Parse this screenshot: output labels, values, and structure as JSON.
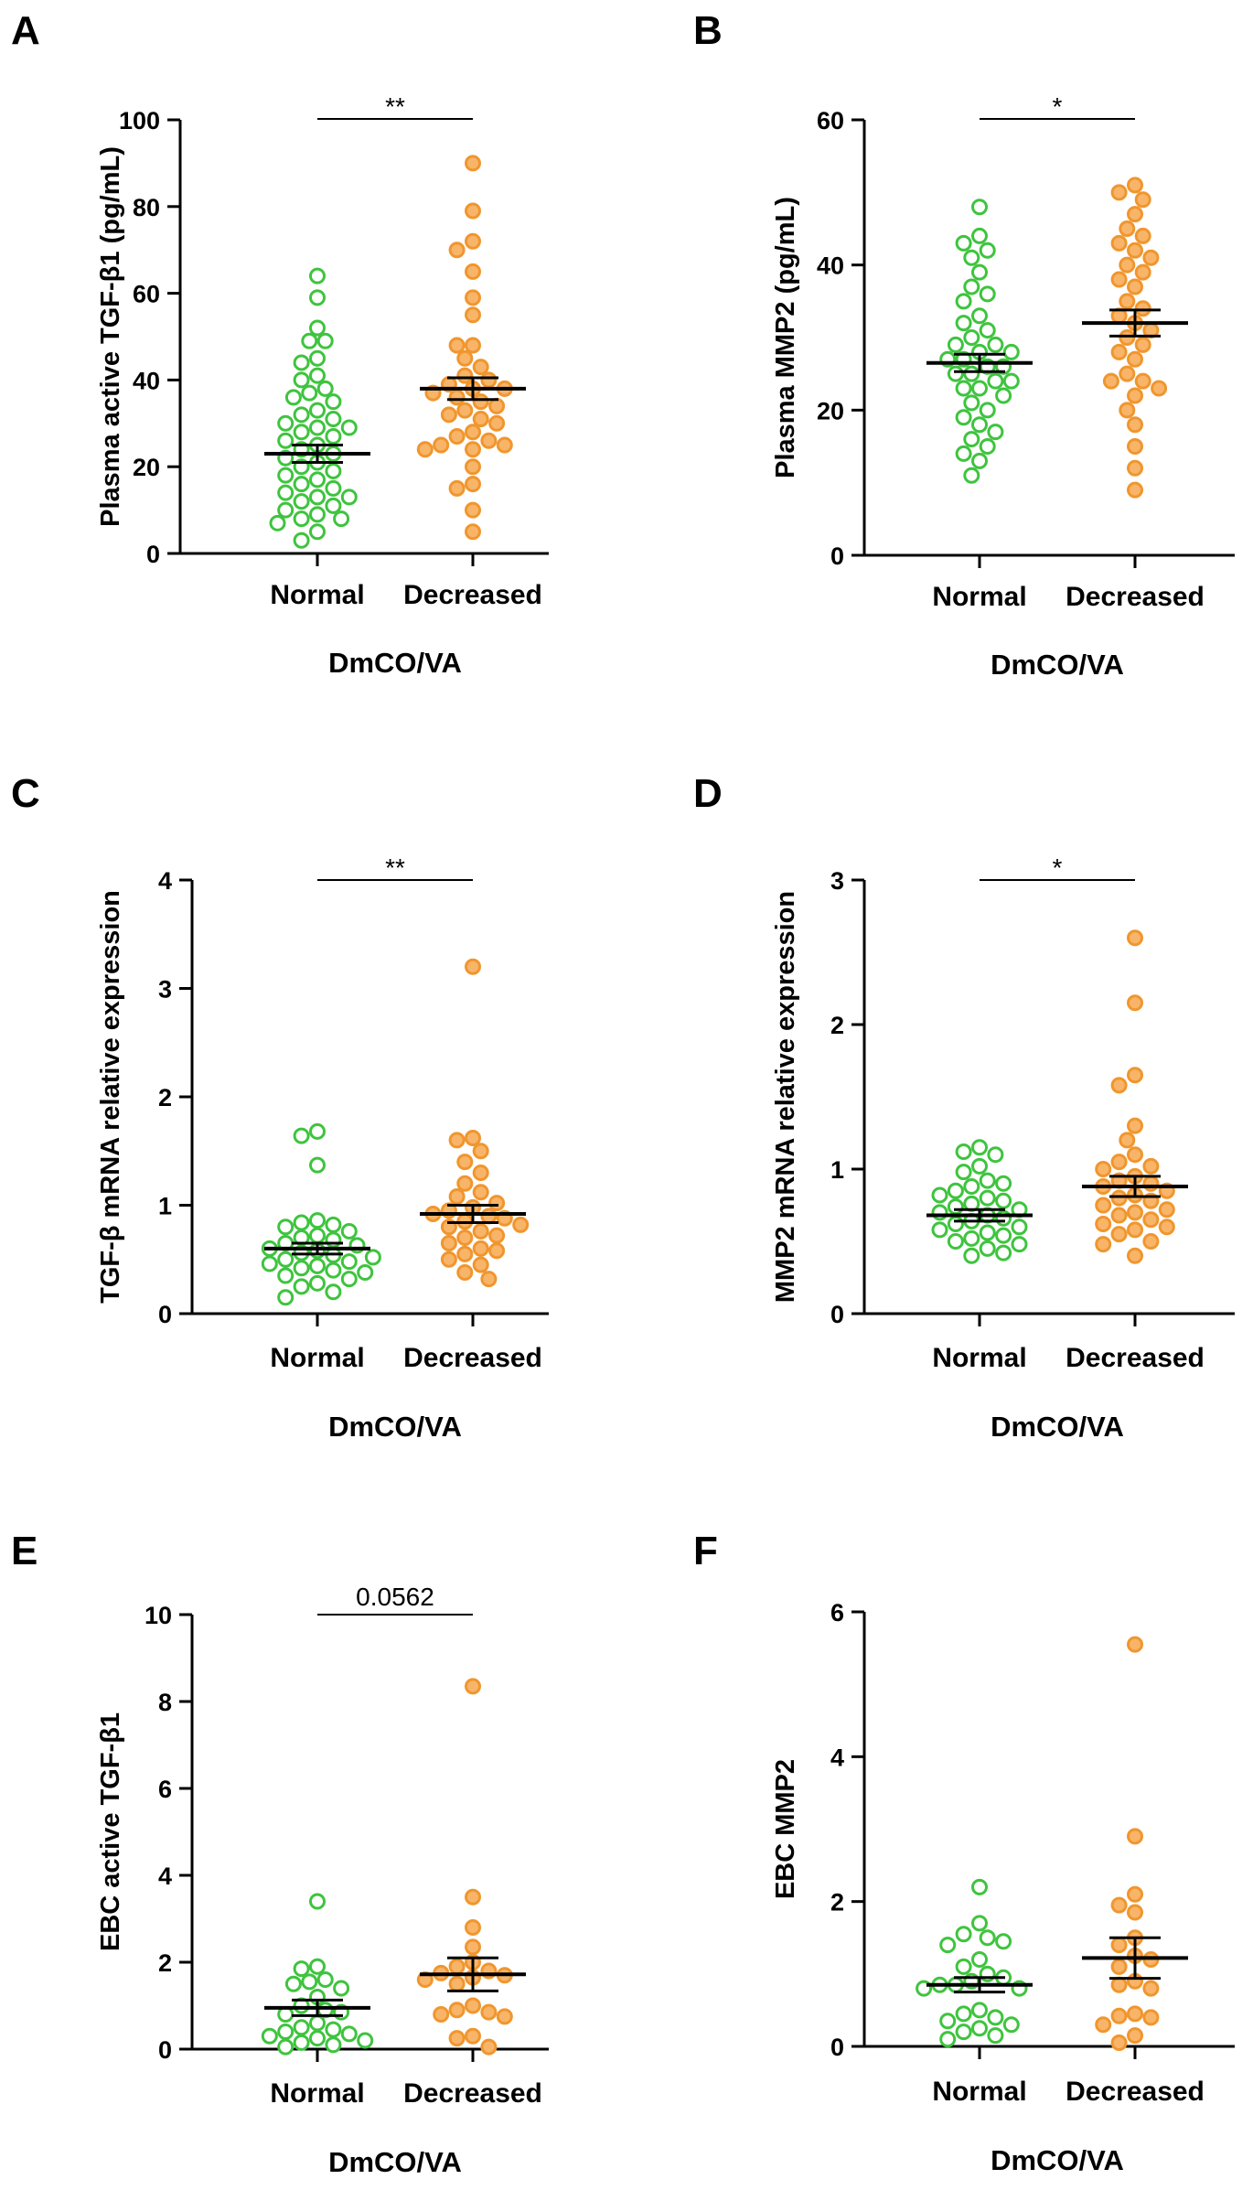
{
  "colors": {
    "normal_edge": "#3ec43e",
    "normal_fill": "#ffffff",
    "decreased_edge": "#f0962e",
    "decreased_fill": "#f8b56a",
    "axis": "#000000"
  },
  "chart_data": [
    {
      "panel": "A",
      "type": "scatter",
      "ylabel": "Plasma active TGF-β1 (pg/mL)",
      "xlabel": "DmCO/VA",
      "categories": [
        "Normal",
        "Decreased"
      ],
      "ylim": [
        0,
        100
      ],
      "yticks": [
        "0",
        "20",
        "40",
        "60",
        "80",
        "100"
      ],
      "significance": "**",
      "series": [
        {
          "name": "Normal",
          "mean": 23,
          "sem": 2,
          "values": [
            64,
            59,
            52,
            49,
            49,
            45,
            44,
            41,
            40,
            38,
            37,
            36,
            35,
            33,
            32,
            31,
            30,
            29,
            29,
            28,
            27,
            26,
            25,
            24,
            23,
            22,
            21,
            20,
            19,
            18,
            17,
            16,
            15,
            14,
            13,
            13,
            12,
            11,
            10,
            9,
            8,
            8,
            7,
            5,
            3
          ]
        },
        {
          "name": "Decreased",
          "mean": 38,
          "sem": 2.5,
          "values": [
            90,
            79,
            72,
            70,
            65,
            59,
            55,
            48,
            48,
            45,
            43,
            41,
            40,
            39,
            38,
            38,
            37,
            36,
            35,
            34,
            33,
            32,
            31,
            30,
            28,
            27,
            26,
            25,
            25,
            24,
            24,
            20,
            16,
            15,
            10,
            5
          ]
        }
      ]
    },
    {
      "panel": "B",
      "type": "scatter",
      "ylabel": "Plasma MMP2 (pg/mL)",
      "xlabel": "DmCO/VA",
      "categories": [
        "Normal",
        "Decreased"
      ],
      "ylim": [
        0,
        60
      ],
      "yticks": [
        "0",
        "20",
        "40",
        "60"
      ],
      "significance": "*",
      "series": [
        {
          "name": "Normal",
          "mean": 26.5,
          "sem": 1.2,
          "values": [
            48,
            44,
            43,
            42,
            41,
            39,
            37,
            36,
            35,
            33,
            32,
            31,
            30,
            29,
            29,
            28,
            28,
            27,
            27,
            26,
            26,
            25,
            25,
            24,
            24,
            23,
            23,
            22,
            21,
            20,
            19,
            18,
            17,
            16,
            15,
            14,
            13,
            11
          ]
        },
        {
          "name": "Decreased",
          "mean": 32,
          "sem": 1.8,
          "values": [
            51,
            50,
            49,
            47,
            45,
            44,
            43,
            42,
            41,
            40,
            39,
            38,
            37,
            35,
            34,
            33,
            32,
            31,
            30,
            29,
            28,
            27,
            25,
            24,
            24,
            23,
            22,
            20,
            18,
            15,
            12,
            9
          ]
        }
      ]
    },
    {
      "panel": "C",
      "type": "scatter",
      "ylabel": "TGF-β mRNA relative expression",
      "xlabel": "DmCO/VA",
      "categories": [
        "Normal",
        "Decreased"
      ],
      "ylim": [
        0,
        4
      ],
      "yticks": [
        "0",
        "1",
        "2",
        "3",
        "4"
      ],
      "significance": "**",
      "series": [
        {
          "name": "Normal",
          "mean": 0.6,
          "sem": 0.05,
          "values": [
            1.68,
            1.64,
            1.37,
            0.86,
            0.84,
            0.82,
            0.8,
            0.76,
            0.72,
            0.7,
            0.68,
            0.65,
            0.63,
            0.6,
            0.58,
            0.56,
            0.54,
            0.52,
            0.5,
            0.48,
            0.46,
            0.44,
            0.42,
            0.4,
            0.38,
            0.35,
            0.32,
            0.28,
            0.25,
            0.2,
            0.15
          ]
        },
        {
          "name": "Decreased",
          "mean": 0.92,
          "sem": 0.08,
          "values": [
            3.2,
            1.62,
            1.6,
            1.5,
            1.4,
            1.3,
            1.2,
            1.12,
            1.08,
            1.02,
            0.98,
            0.95,
            0.92,
            0.9,
            0.88,
            0.85,
            0.82,
            0.8,
            0.76,
            0.72,
            0.7,
            0.65,
            0.6,
            0.58,
            0.55,
            0.5,
            0.45,
            0.38,
            0.32
          ]
        }
      ]
    },
    {
      "panel": "D",
      "type": "scatter",
      "ylabel": "MMP2 mRNA relative expression",
      "xlabel": "DmCO/VA",
      "categories": [
        "Normal",
        "Decreased"
      ],
      "ylim": [
        0,
        3
      ],
      "yticks": [
        "0",
        "1",
        "2",
        "3"
      ],
      "significance": "*",
      "series": [
        {
          "name": "Normal",
          "mean": 0.68,
          "sem": 0.04,
          "values": [
            1.15,
            1.12,
            1.1,
            1.02,
            0.98,
            0.92,
            0.9,
            0.88,
            0.85,
            0.82,
            0.8,
            0.78,
            0.76,
            0.74,
            0.72,
            0.7,
            0.68,
            0.66,
            0.64,
            0.62,
            0.6,
            0.58,
            0.56,
            0.54,
            0.52,
            0.5,
            0.48,
            0.45,
            0.42,
            0.4
          ]
        },
        {
          "name": "Decreased",
          "mean": 0.88,
          "sem": 0.07,
          "values": [
            2.6,
            2.15,
            1.65,
            1.58,
            1.3,
            1.2,
            1.1,
            1.05,
            1.02,
            1.0,
            0.95,
            0.92,
            0.9,
            0.88,
            0.85,
            0.82,
            0.8,
            0.78,
            0.75,
            0.72,
            0.7,
            0.68,
            0.65,
            0.62,
            0.6,
            0.58,
            0.55,
            0.5,
            0.48,
            0.4
          ]
        }
      ]
    },
    {
      "panel": "E",
      "type": "scatter",
      "ylabel": "EBC active TGF-β1",
      "xlabel": "DmCO/VA",
      "categories": [
        "Normal",
        "Decreased"
      ],
      "ylim": [
        0,
        10
      ],
      "yticks": [
        "0",
        "2",
        "4",
        "6",
        "8",
        "10"
      ],
      "significance": "0.0562",
      "series": [
        {
          "name": "Normal",
          "mean": 0.95,
          "sem": 0.18,
          "values": [
            3.4,
            1.9,
            1.85,
            1.6,
            1.55,
            1.5,
            1.4,
            1.2,
            1.0,
            0.9,
            0.85,
            0.8,
            0.6,
            0.5,
            0.45,
            0.4,
            0.35,
            0.3,
            0.25,
            0.2,
            0.15,
            0.1,
            0.05
          ]
        },
        {
          "name": "Decreased",
          "mean": 1.72,
          "sem": 0.38,
          "values": [
            8.35,
            3.5,
            2.8,
            2.35,
            2.0,
            1.9,
            1.8,
            1.75,
            1.7,
            1.65,
            1.6,
            1.5,
            1.0,
            0.9,
            0.85,
            0.8,
            0.75,
            0.3,
            0.25,
            0.05
          ]
        }
      ]
    },
    {
      "panel": "F",
      "type": "scatter",
      "ylabel": "EBC MMP2",
      "xlabel": "DmCO/VA",
      "categories": [
        "Normal",
        "Decreased"
      ],
      "ylim": [
        0,
        6
      ],
      "yticks": [
        "0",
        "2",
        "4",
        "6"
      ],
      "significance": "",
      "series": [
        {
          "name": "Normal",
          "mean": 0.85,
          "sem": 0.1,
          "values": [
            2.2,
            1.7,
            1.55,
            1.5,
            1.45,
            1.4,
            1.2,
            1.1,
            1.0,
            0.95,
            0.9,
            0.85,
            0.85,
            0.8,
            0.8,
            0.5,
            0.45,
            0.4,
            0.35,
            0.3,
            0.25,
            0.2,
            0.15,
            0.1
          ]
        },
        {
          "name": "Decreased",
          "mean": 1.22,
          "sem": 0.28,
          "values": [
            5.55,
            2.9,
            2.1,
            1.95,
            1.85,
            1.5,
            1.4,
            1.25,
            1.2,
            1.1,
            0.9,
            0.85,
            0.8,
            0.45,
            0.42,
            0.4,
            0.3,
            0.15,
            0.05
          ]
        }
      ]
    }
  ]
}
